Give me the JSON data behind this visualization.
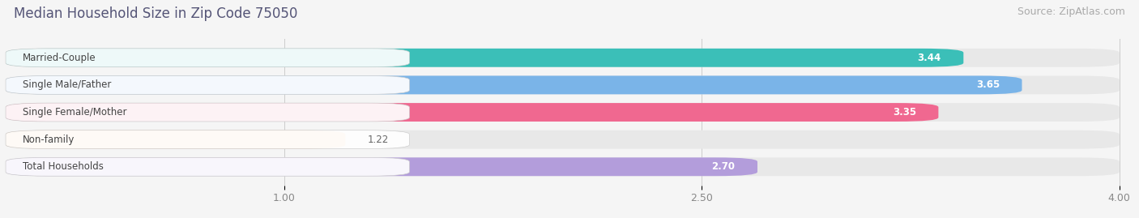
{
  "title": "Median Household Size in Zip Code 75050",
  "source": "Source: ZipAtlas.com",
  "categories": [
    "Married-Couple",
    "Single Male/Father",
    "Single Female/Mother",
    "Non-family",
    "Total Households"
  ],
  "values": [
    3.44,
    3.65,
    3.35,
    1.22,
    2.7
  ],
  "bar_colors": [
    "#3bbfb8",
    "#7ab4e8",
    "#f06890",
    "#f5c99a",
    "#b39ddb"
  ],
  "bar_bg_color": "#e8e8e8",
  "xmin": 0.0,
  "xmax": 4.0,
  "xticks": [
    1.0,
    2.5,
    4.0
  ],
  "value_labels": [
    "3.44",
    "3.65",
    "3.35",
    "1.22",
    "2.70"
  ],
  "title_fontsize": 12,
  "source_fontsize": 9,
  "label_fontsize": 8.5,
  "value_fontsize": 8.5,
  "background_color": "#f5f5f5",
  "title_color": "#555577",
  "value_color_inside": "white",
  "value_color_outside": "#666666",
  "outside_threshold": 2.0
}
